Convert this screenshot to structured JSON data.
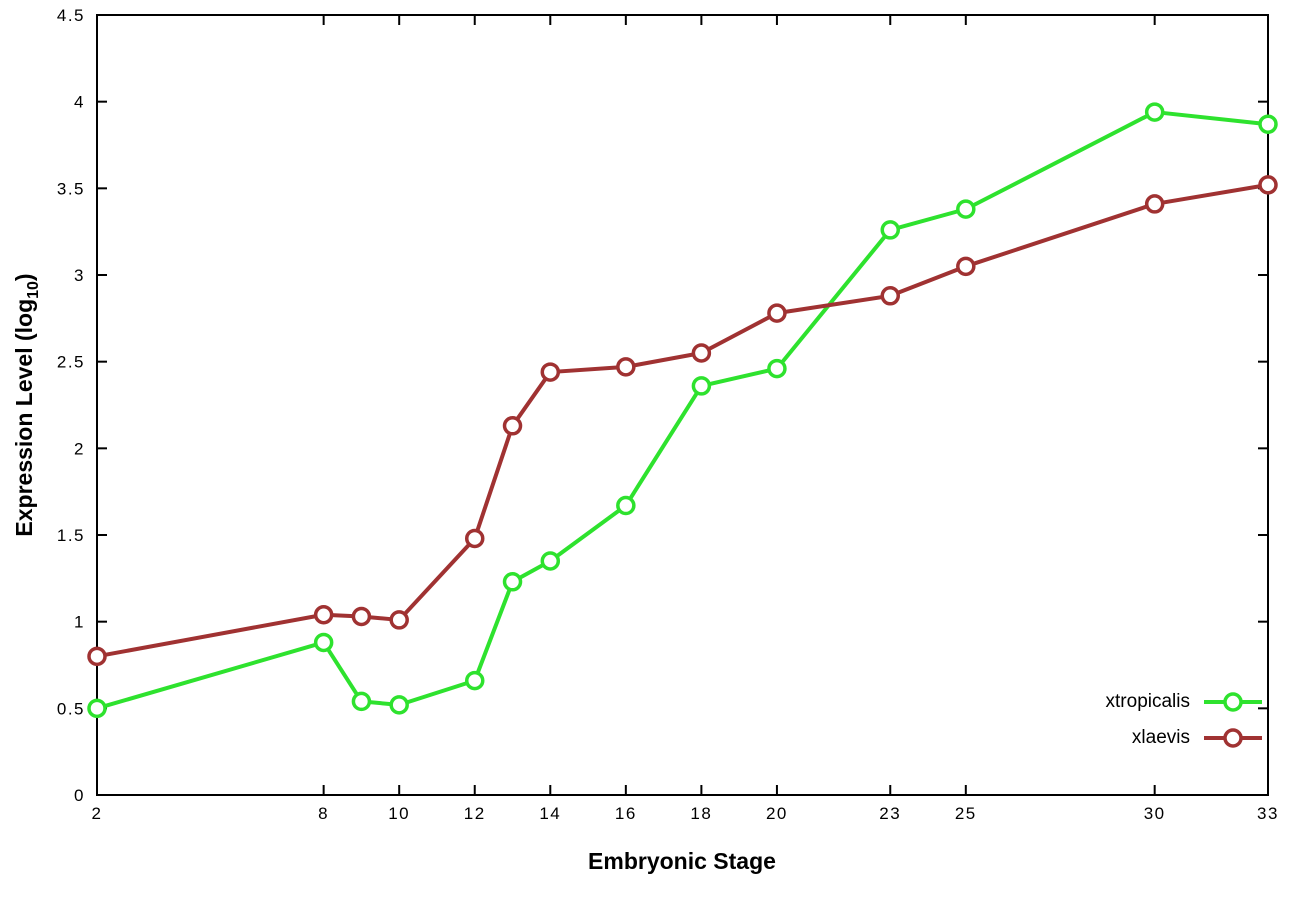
{
  "chart_data": {
    "type": "line",
    "title": "",
    "xlabel": "Embryonic Stage",
    "ylabel": {
      "pre": "Expression Level (log",
      "sub": "10",
      "post": ")"
    },
    "ylabel_plain": "Expression Level (log10)",
    "xlim": [
      2,
      33
    ],
    "ylim": [
      0,
      4.5
    ],
    "x_ticks": [
      2,
      8,
      10,
      12,
      14,
      16,
      18,
      20,
      23,
      25,
      30,
      33
    ],
    "y_tick_step": 0.5,
    "grid": false,
    "legend_position": "bottom-right",
    "marker": "open-circle",
    "x": [
      2,
      8,
      9,
      10,
      12,
      13,
      14,
      16,
      18,
      20,
      23,
      25,
      30,
      33
    ],
    "series": [
      {
        "name": "xtropicalis",
        "color": "#2ee22e",
        "values": [
          0.5,
          0.88,
          0.54,
          0.52,
          0.66,
          1.23,
          1.35,
          1.67,
          2.36,
          2.46,
          3.26,
          3.38,
          3.94,
          3.87
        ]
      },
      {
        "name": "xlaevis",
        "color": "#a03232",
        "values": [
          0.8,
          1.04,
          1.03,
          1.01,
          1.48,
          2.13,
          2.44,
          2.47,
          2.55,
          2.78,
          2.88,
          3.05,
          3.41,
          3.52
        ]
      }
    ],
    "colors": {
      "axis": "#000000",
      "background": "#ffffff",
      "marker_fill": "#ffffff"
    }
  }
}
